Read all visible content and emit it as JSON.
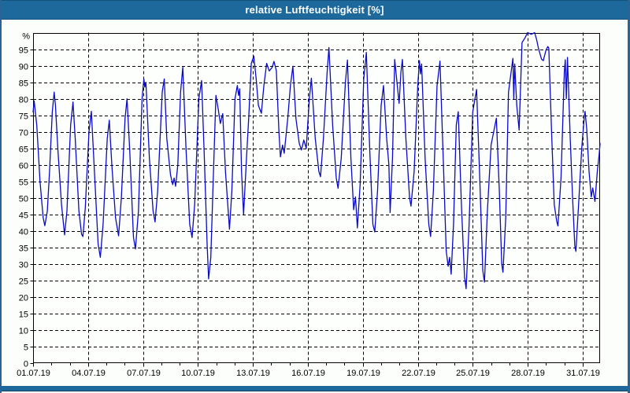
{
  "window": {
    "title": "relative Luftfeuchtigkeit [%]",
    "title_bar_color": "#1e699c",
    "border_color": "#2b6394",
    "plot_background": "#fdfffd"
  },
  "chart_data": {
    "type": "line",
    "title": "relative Luftfeuchtigkeit [%]",
    "ylabel": "%",
    "y_unit_label": "%",
    "ylim": [
      0,
      100
    ],
    "y_tick_step": 5,
    "y_tick_labels": [
      "0",
      "5",
      "10",
      "15",
      "20",
      "25",
      "30",
      "35",
      "40",
      "45",
      "50",
      "55",
      "60",
      "65",
      "70",
      "75",
      "80",
      "85",
      "90",
      "95"
    ],
    "x_tick_labels": [
      "01.07.19",
      "04.07.19",
      "07.07.19",
      "10.07.19",
      "13.07.19",
      "16.07.19",
      "19.07.19",
      "22.07.19",
      "25.07.19",
      "28.07.19",
      "31.07.19"
    ],
    "x_label_step_days": 3,
    "x_minor_tick_step_days": 1,
    "x_range_days": [
      0,
      30.95
    ],
    "grid": "dashed",
    "legend": "none",
    "line_color": "#0a0ac8",
    "series": [
      {
        "name": "relative Luftfeuchtigkeit",
        "points": [
          [
            0.0,
            76
          ],
          [
            0.06,
            79.3
          ],
          [
            0.14,
            75
          ],
          [
            0.2,
            72
          ],
          [
            0.38,
            55
          ],
          [
            0.55,
            44
          ],
          [
            0.64,
            41.6
          ],
          [
            0.78,
            46
          ],
          [
            0.9,
            58
          ],
          [
            1.05,
            76
          ],
          [
            1.15,
            82
          ],
          [
            1.22,
            78
          ],
          [
            1.35,
            65
          ],
          [
            1.55,
            48
          ],
          [
            1.72,
            38.8
          ],
          [
            1.85,
            46
          ],
          [
            2.05,
            72
          ],
          [
            2.18,
            79
          ],
          [
            2.3,
            68
          ],
          [
            2.5,
            46
          ],
          [
            2.65,
            39
          ],
          [
            2.72,
            38.3
          ],
          [
            2.85,
            47
          ],
          [
            3.05,
            70
          ],
          [
            3.18,
            76.2
          ],
          [
            3.35,
            58
          ],
          [
            3.55,
            36
          ],
          [
            3.67,
            32
          ],
          [
            3.82,
            42
          ],
          [
            4.05,
            68
          ],
          [
            4.16,
            73.5
          ],
          [
            4.3,
            60
          ],
          [
            4.5,
            44
          ],
          [
            4.67,
            38.5
          ],
          [
            4.82,
            50
          ],
          [
            5.02,
            74
          ],
          [
            5.13,
            80
          ],
          [
            5.28,
            64
          ],
          [
            5.48,
            38
          ],
          [
            5.59,
            34.5
          ],
          [
            5.75,
            46
          ],
          [
            5.95,
            80
          ],
          [
            6.05,
            86
          ],
          [
            6.1,
            83.5
          ],
          [
            6.16,
            85
          ],
          [
            6.35,
            62
          ],
          [
            6.55,
            46
          ],
          [
            6.66,
            42.7
          ],
          [
            6.8,
            52
          ],
          [
            7.05,
            82
          ],
          [
            7.16,
            86
          ],
          [
            7.3,
            68
          ],
          [
            7.5,
            57
          ],
          [
            7.62,
            54
          ],
          [
            7.7,
            56
          ],
          [
            7.78,
            53.5
          ],
          [
            7.9,
            60
          ],
          [
            8.05,
            82
          ],
          [
            8.17,
            89.5
          ],
          [
            8.35,
            65
          ],
          [
            8.55,
            42
          ],
          [
            8.68,
            38
          ],
          [
            8.82,
            48
          ],
          [
            9.05,
            80
          ],
          [
            9.2,
            85.5
          ],
          [
            9.35,
            62
          ],
          [
            9.5,
            36
          ],
          [
            9.58,
            25.5
          ],
          [
            9.7,
            32
          ],
          [
            9.85,
            58
          ],
          [
            9.98,
            81
          ],
          [
            10.1,
            77
          ],
          [
            10.22,
            72.5
          ],
          [
            10.35,
            75.5
          ],
          [
            10.5,
            58
          ],
          [
            10.72,
            40.5
          ],
          [
            10.85,
            52
          ],
          [
            11.02,
            80
          ],
          [
            11.15,
            84
          ],
          [
            11.22,
            81
          ],
          [
            11.28,
            83
          ],
          [
            11.38,
            58
          ],
          [
            11.49,
            45
          ],
          [
            11.65,
            62
          ],
          [
            11.78,
            75
          ],
          [
            11.91,
            90.7
          ],
          [
            12.05,
            92.9
          ],
          [
            12.18,
            86
          ],
          [
            12.3,
            78
          ],
          [
            12.46,
            75.6
          ],
          [
            12.6,
            84
          ],
          [
            12.75,
            90.7
          ],
          [
            12.89,
            88.4
          ],
          [
            13.05,
            89.5
          ],
          [
            13.15,
            91.3
          ],
          [
            13.28,
            88.5
          ],
          [
            13.42,
            70
          ],
          [
            13.5,
            62.4
          ],
          [
            13.62,
            66
          ],
          [
            13.71,
            63.5
          ],
          [
            13.9,
            74
          ],
          [
            14.05,
            84
          ],
          [
            14.18,
            89.8
          ],
          [
            14.35,
            74
          ],
          [
            14.53,
            66.5
          ],
          [
            14.65,
            64.5
          ],
          [
            14.78,
            67.5
          ],
          [
            14.91,
            65
          ],
          [
            15.08,
            80
          ],
          [
            15.19,
            86.2
          ],
          [
            15.4,
            68
          ],
          [
            15.6,
            58
          ],
          [
            15.69,
            56.4
          ],
          [
            15.85,
            68
          ],
          [
            16.05,
            88
          ],
          [
            16.15,
            95.5
          ],
          [
            16.35,
            72
          ],
          [
            16.55,
            56
          ],
          [
            16.65,
            52.9
          ],
          [
            16.82,
            62
          ],
          [
            17.05,
            85
          ],
          [
            17.16,
            91.7
          ],
          [
            17.35,
            62
          ],
          [
            17.5,
            46.4
          ],
          [
            17.6,
            50.3
          ],
          [
            17.7,
            40.9
          ],
          [
            17.85,
            54
          ],
          [
            18.05,
            86
          ],
          [
            18.19,
            94
          ],
          [
            18.38,
            64
          ],
          [
            18.55,
            42
          ],
          [
            18.65,
            39.7
          ],
          [
            18.8,
            52
          ],
          [
            19.0,
            78
          ],
          [
            19.13,
            84
          ],
          [
            19.3,
            68
          ],
          [
            19.42,
            60
          ],
          [
            19.49,
            45.6
          ],
          [
            19.62,
            62
          ],
          [
            19.74,
            91.9
          ],
          [
            19.88,
            84
          ],
          [
            19.98,
            78.6
          ],
          [
            20.08,
            88
          ],
          [
            20.16,
            91.9
          ],
          [
            20.35,
            68
          ],
          [
            20.55,
            50
          ],
          [
            20.63,
            47.5
          ],
          [
            20.8,
            58
          ],
          [
            21.0,
            84
          ],
          [
            21.09,
            91.5
          ],
          [
            21.15,
            87.5
          ],
          [
            21.21,
            90.5
          ],
          [
            21.4,
            62
          ],
          [
            21.6,
            42
          ],
          [
            21.7,
            38.3
          ],
          [
            21.85,
            52
          ],
          [
            22.05,
            84
          ],
          [
            22.21,
            91.4
          ],
          [
            22.4,
            60
          ],
          [
            22.55,
            34
          ],
          [
            22.66,
            29.3
          ],
          [
            22.74,
            32
          ],
          [
            22.82,
            26.9
          ],
          [
            22.95,
            42
          ],
          [
            23.1,
            72
          ],
          [
            23.21,
            76.1
          ],
          [
            23.38,
            48
          ],
          [
            23.55,
            26
          ],
          [
            23.64,
            22.5
          ],
          [
            23.8,
            42
          ],
          [
            24.0,
            76
          ],
          [
            24.21,
            82.8
          ],
          [
            24.38,
            56
          ],
          [
            24.55,
            28
          ],
          [
            24.64,
            24.5
          ],
          [
            24.8,
            46
          ],
          [
            25.0,
            66
          ],
          [
            25.29,
            74.1
          ],
          [
            25.45,
            52
          ],
          [
            25.58,
            30
          ],
          [
            25.65,
            27.5
          ],
          [
            25.8,
            44
          ],
          [
            25.95,
            82
          ],
          [
            26.19,
            92.2
          ],
          [
            26.24,
            80
          ],
          [
            26.29,
            90.5
          ],
          [
            26.4,
            78
          ],
          [
            26.53,
            70.5
          ],
          [
            26.69,
            97
          ],
          [
            26.86,
            98.5
          ],
          [
            26.99,
            100
          ],
          [
            27.2,
            99.5
          ],
          [
            27.38,
            100
          ],
          [
            27.48,
            98
          ],
          [
            27.59,
            95.2
          ],
          [
            27.75,
            92
          ],
          [
            27.85,
            91.5
          ],
          [
            28.0,
            94.8
          ],
          [
            28.1,
            95.8
          ],
          [
            28.15,
            95.3
          ],
          [
            28.3,
            70
          ],
          [
            28.45,
            48
          ],
          [
            28.58,
            43
          ],
          [
            28.65,
            41.5
          ],
          [
            28.82,
            56
          ],
          [
            29.0,
            88
          ],
          [
            29.05,
            91.8
          ],
          [
            29.11,
            80
          ],
          [
            29.17,
            92.5
          ],
          [
            29.32,
            68
          ],
          [
            29.45,
            50
          ],
          [
            29.57,
            35.5
          ],
          [
            29.63,
            33.8
          ],
          [
            29.8,
            50
          ],
          [
            29.95,
            65
          ],
          [
            30.08,
            74
          ],
          [
            30.13,
            76.2
          ],
          [
            30.22,
            71
          ],
          [
            30.35,
            58
          ],
          [
            30.47,
            50.3
          ],
          [
            30.55,
            53
          ],
          [
            30.67,
            48.9
          ],
          [
            30.8,
            58
          ],
          [
            30.9,
            63
          ],
          [
            30.95,
            66.5
          ]
        ]
      }
    ]
  }
}
